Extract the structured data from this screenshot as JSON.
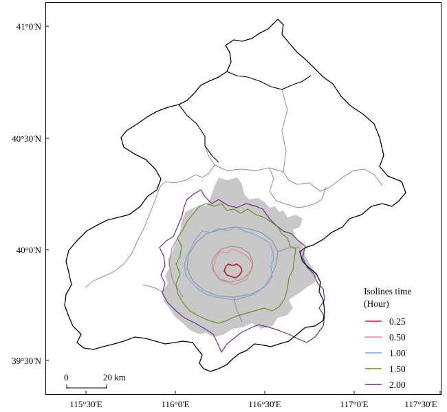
{
  "map": {
    "lat_labels": [
      "41°0'N",
      "40°30'N",
      "40°0'N",
      "39°30'N"
    ],
    "lon_labels": [
      "115°30'E",
      "116°0'E",
      "116°30'E",
      "117°0'E",
      "117°30'E"
    ]
  },
  "legend": {
    "title_line1": "Isolines time",
    "title_line2": "(Hour)",
    "items": [
      {
        "label": "0.25",
        "color": "#c8102e"
      },
      {
        "label": "0.50",
        "color": "#f4817a"
      },
      {
        "label": "1.00",
        "color": "#7ba4e6"
      },
      {
        "label": "1.50",
        "color": "#6b8e23"
      },
      {
        "label": "2.00",
        "color": "#6a2c91"
      }
    ]
  },
  "scale_bar": {
    "start_label": "0",
    "end_label": "20 km"
  },
  "colors": {
    "outer_boundary": "#000000",
    "district_boundary": "#8c8c8c",
    "urban_fill": "#c8c8c8"
  }
}
